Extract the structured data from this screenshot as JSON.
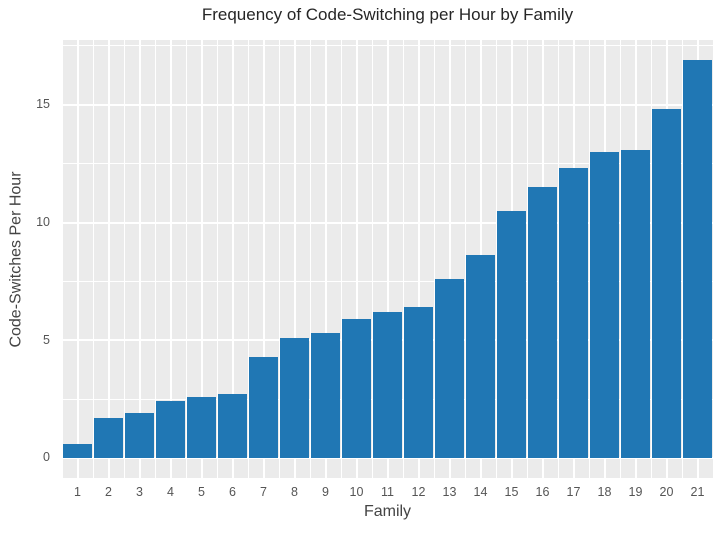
{
  "chart_data": {
    "type": "bar",
    "title": "Frequency of Code-Switching per Hour by Family",
    "xlabel": "Family",
    "ylabel": "Code-Switches Per Hour",
    "categories": [
      "1",
      "2",
      "3",
      "4",
      "5",
      "6",
      "7",
      "8",
      "9",
      "10",
      "11",
      "12",
      "13",
      "14",
      "15",
      "16",
      "17",
      "18",
      "19",
      "20",
      "21"
    ],
    "values": [
      0.6,
      1.7,
      1.9,
      2.4,
      2.6,
      2.7,
      4.3,
      5.1,
      5.3,
      5.9,
      6.2,
      6.4,
      7.6,
      8.6,
      10.5,
      11.5,
      12.3,
      13.0,
      13.1,
      14.8,
      16.9
    ],
    "yticks": [
      0,
      5,
      10,
      15
    ],
    "minor_yticks": [
      2.5,
      7.5,
      12.5,
      17.5
    ],
    "ylim": [
      -0.85,
      17.75
    ],
    "grid": "on",
    "legend": "none",
    "bar_color": "#2077b4",
    "panel_bg": "#ebebeb",
    "grid_color": "#ffffff",
    "tick_label_color": "#555555",
    "axis_label_color": "#444444",
    "title_color": "#262626",
    "bar_width_fraction": 0.92
  }
}
